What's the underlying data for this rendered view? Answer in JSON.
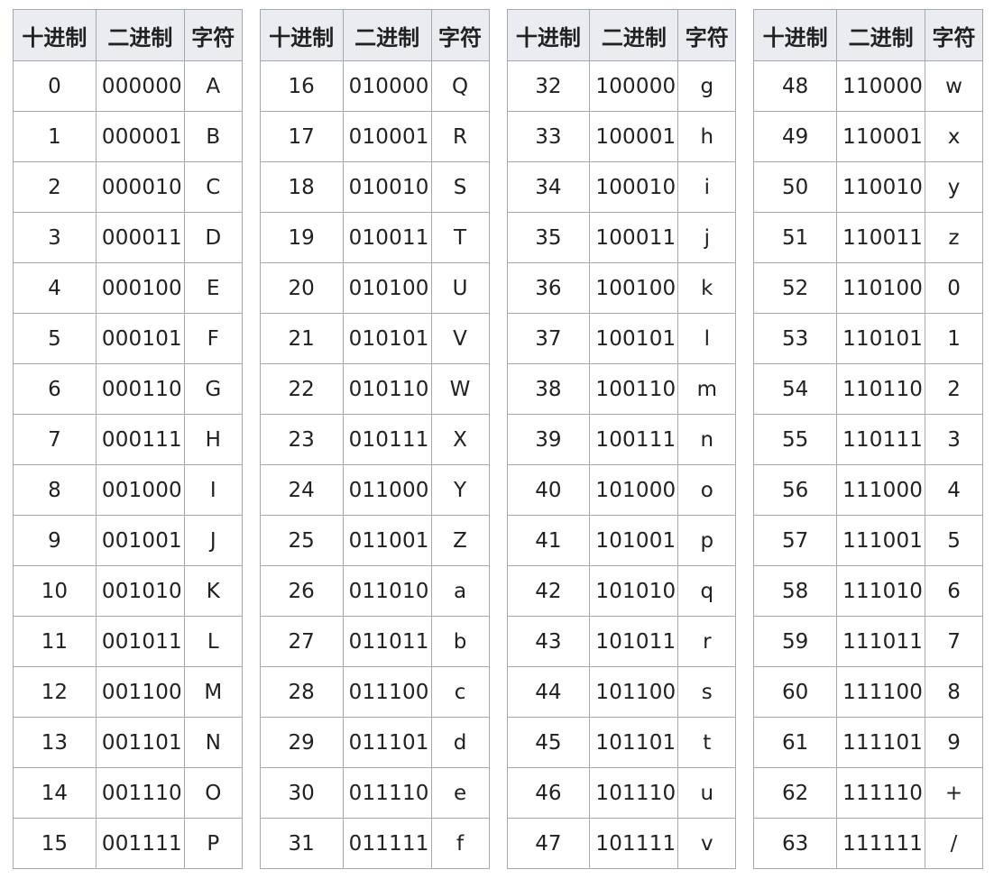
{
  "headers": {
    "decimal": "十进制",
    "binary": "二进制",
    "char": "字符"
  },
  "tables": [
    {
      "rows": [
        {
          "dec": "0",
          "bin": "000000",
          "char": "A"
        },
        {
          "dec": "1",
          "bin": "000001",
          "char": "B"
        },
        {
          "dec": "2",
          "bin": "000010",
          "char": "C"
        },
        {
          "dec": "3",
          "bin": "000011",
          "char": "D"
        },
        {
          "dec": "4",
          "bin": "000100",
          "char": "E"
        },
        {
          "dec": "5",
          "bin": "000101",
          "char": "F"
        },
        {
          "dec": "6",
          "bin": "000110",
          "char": "G"
        },
        {
          "dec": "7",
          "bin": "000111",
          "char": "H"
        },
        {
          "dec": "8",
          "bin": "001000",
          "char": "I"
        },
        {
          "dec": "9",
          "bin": "001001",
          "char": "J"
        },
        {
          "dec": "10",
          "bin": "001010",
          "char": "K"
        },
        {
          "dec": "11",
          "bin": "001011",
          "char": "L"
        },
        {
          "dec": "12",
          "bin": "001100",
          "char": "M"
        },
        {
          "dec": "13",
          "bin": "001101",
          "char": "N"
        },
        {
          "dec": "14",
          "bin": "001110",
          "char": "O"
        },
        {
          "dec": "15",
          "bin": "001111",
          "char": "P"
        }
      ]
    },
    {
      "rows": [
        {
          "dec": "16",
          "bin": "010000",
          "char": "Q"
        },
        {
          "dec": "17",
          "bin": "010001",
          "char": "R"
        },
        {
          "dec": "18",
          "bin": "010010",
          "char": "S"
        },
        {
          "dec": "19",
          "bin": "010011",
          "char": "T"
        },
        {
          "dec": "20",
          "bin": "010100",
          "char": "U"
        },
        {
          "dec": "21",
          "bin": "010101",
          "char": "V"
        },
        {
          "dec": "22",
          "bin": "010110",
          "char": "W"
        },
        {
          "dec": "23",
          "bin": "010111",
          "char": "X"
        },
        {
          "dec": "24",
          "bin": "011000",
          "char": "Y"
        },
        {
          "dec": "25",
          "bin": "011001",
          "char": "Z"
        },
        {
          "dec": "26",
          "bin": "011010",
          "char": "a"
        },
        {
          "dec": "27",
          "bin": "011011",
          "char": "b"
        },
        {
          "dec": "28",
          "bin": "011100",
          "char": "c"
        },
        {
          "dec": "29",
          "bin": "011101",
          "char": "d"
        },
        {
          "dec": "30",
          "bin": "011110",
          "char": "e"
        },
        {
          "dec": "31",
          "bin": "011111",
          "char": "f"
        }
      ]
    },
    {
      "rows": [
        {
          "dec": "32",
          "bin": "100000",
          "char": "g"
        },
        {
          "dec": "33",
          "bin": "100001",
          "char": "h"
        },
        {
          "dec": "34",
          "bin": "100010",
          "char": "i"
        },
        {
          "dec": "35",
          "bin": "100011",
          "char": "j"
        },
        {
          "dec": "36",
          "bin": "100100",
          "char": "k"
        },
        {
          "dec": "37",
          "bin": "100101",
          "char": "l"
        },
        {
          "dec": "38",
          "bin": "100110",
          "char": "m"
        },
        {
          "dec": "39",
          "bin": "100111",
          "char": "n"
        },
        {
          "dec": "40",
          "bin": "101000",
          "char": "o"
        },
        {
          "dec": "41",
          "bin": "101001",
          "char": "p"
        },
        {
          "dec": "42",
          "bin": "101010",
          "char": "q"
        },
        {
          "dec": "43",
          "bin": "101011",
          "char": "r"
        },
        {
          "dec": "44",
          "bin": "101100",
          "char": "s"
        },
        {
          "dec": "45",
          "bin": "101101",
          "char": "t"
        },
        {
          "dec": "46",
          "bin": "101110",
          "char": "u"
        },
        {
          "dec": "47",
          "bin": "101111",
          "char": "v"
        }
      ]
    },
    {
      "rows": [
        {
          "dec": "48",
          "bin": "110000",
          "char": "w"
        },
        {
          "dec": "49",
          "bin": "110001",
          "char": "x"
        },
        {
          "dec": "50",
          "bin": "110010",
          "char": "y"
        },
        {
          "dec": "51",
          "bin": "110011",
          "char": "z"
        },
        {
          "dec": "52",
          "bin": "110100",
          "char": "0"
        },
        {
          "dec": "53",
          "bin": "110101",
          "char": "1"
        },
        {
          "dec": "54",
          "bin": "110110",
          "char": "2"
        },
        {
          "dec": "55",
          "bin": "110111",
          "char": "3"
        },
        {
          "dec": "56",
          "bin": "111000",
          "char": "4"
        },
        {
          "dec": "57",
          "bin": "111001",
          "char": "5"
        },
        {
          "dec": "58",
          "bin": "111010",
          "char": "6"
        },
        {
          "dec": "59",
          "bin": "111011",
          "char": "7"
        },
        {
          "dec": "60",
          "bin": "111100",
          "char": "8"
        },
        {
          "dec": "61",
          "bin": "111101",
          "char": "9"
        },
        {
          "dec": "62",
          "bin": "111110",
          "char": "+"
        },
        {
          "dec": "63",
          "bin": "111111",
          "char": "/"
        }
      ]
    }
  ]
}
